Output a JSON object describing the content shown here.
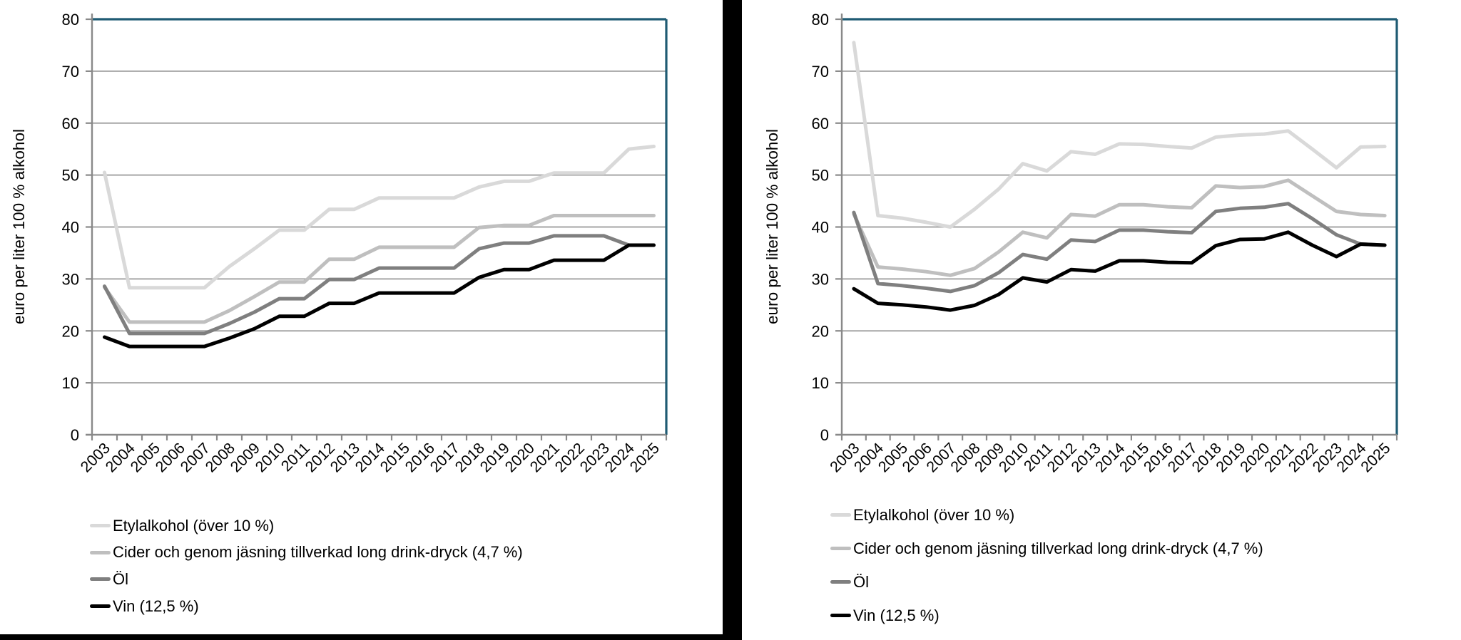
{
  "chart_data": [
    {
      "type": "line",
      "position": "left",
      "title": "",
      "xlabel": "",
      "ylabel": "euro per liter 100 % alkohol",
      "ylim": [
        0,
        80
      ],
      "ytick_interval": 10,
      "yticks": [
        0,
        10,
        20,
        30,
        40,
        50,
        60,
        70,
        80
      ],
      "grid": true,
      "legend_position": "below-left",
      "x": [
        2003,
        2004,
        2005,
        2006,
        2007,
        2008,
        2009,
        2010,
        2011,
        2012,
        2013,
        2014,
        2015,
        2016,
        2017,
        2018,
        2019,
        2020,
        2021,
        2022,
        2023,
        2024,
        2025
      ],
      "series": [
        {
          "name": "Etylalkohol (över 10 %)",
          "color": "#d9d9d9",
          "values": [
            50.5,
            28.3,
            28.3,
            28.3,
            28.3,
            32.4,
            35.8,
            39.4,
            39.4,
            43.4,
            43.4,
            45.6,
            45.6,
            45.6,
            45.6,
            47.7,
            48.8,
            48.8,
            50.4,
            50.4,
            50.4,
            55.0,
            55.5
          ]
        },
        {
          "name": "Cider och genom jäsning tillverkad long drink-dryck (4,7 %)",
          "color": "#bfbfbf",
          "values": [
            28.4,
            21.7,
            21.7,
            21.7,
            21.7,
            23.9,
            26.6,
            29.4,
            29.4,
            33.8,
            33.8,
            36.1,
            36.1,
            36.1,
            36.1,
            39.9,
            40.3,
            40.3,
            42.2,
            42.2,
            42.2,
            42.2,
            42.2
          ]
        },
        {
          "name": "Öl",
          "color": "#7f7f7f",
          "values": [
            28.6,
            19.5,
            19.5,
            19.5,
            19.5,
            21.4,
            23.6,
            26.2,
            26.2,
            29.9,
            29.9,
            32.1,
            32.1,
            32.1,
            32.1,
            35.8,
            36.9,
            36.9,
            38.3,
            38.3,
            38.3,
            36.5,
            36.5
          ]
        },
        {
          "name": "Vin (12,5 %)",
          "color": "#000000",
          "values": [
            18.8,
            17.0,
            17.0,
            17.0,
            17.0,
            18.6,
            20.4,
            22.8,
            22.8,
            25.3,
            25.3,
            27.3,
            27.3,
            27.3,
            27.3,
            30.3,
            31.8,
            31.8,
            33.6,
            33.6,
            33.6,
            36.5,
            36.5
          ]
        }
      ]
    },
    {
      "type": "line",
      "position": "right",
      "title": "",
      "xlabel": "",
      "ylabel": "euro per liter 100 % alkohol",
      "ylim": [
        0,
        80
      ],
      "ytick_interval": 10,
      "yticks": [
        0,
        10,
        20,
        30,
        40,
        50,
        60,
        70,
        80
      ],
      "grid": true,
      "legend_position": "below-left",
      "x": [
        2003,
        2004,
        2005,
        2006,
        2007,
        2008,
        2009,
        2010,
        2011,
        2012,
        2013,
        2014,
        2015,
        2016,
        2017,
        2018,
        2019,
        2020,
        2021,
        2022,
        2023,
        2024,
        2025
      ],
      "series": [
        {
          "name": "Etylalkohol (över 10 %)",
          "color": "#d9d9d9",
          "values": [
            75.5,
            42.2,
            41.7,
            40.9,
            40.0,
            43.4,
            47.3,
            52.2,
            50.8,
            54.5,
            54.0,
            56.0,
            55.9,
            55.5,
            55.2,
            57.3,
            57.7,
            57.9,
            58.5,
            55.0,
            51.4,
            55.4,
            55.5
          ]
        },
        {
          "name": "Cider och genom jäsning tillverkad long drink-dryck (4,7 %)",
          "color": "#bfbfbf",
          "values": [
            42.5,
            32.3,
            31.9,
            31.4,
            30.7,
            32.0,
            35.2,
            39.0,
            37.9,
            42.4,
            42.1,
            44.3,
            44.3,
            43.9,
            43.7,
            47.9,
            47.6,
            47.8,
            49.0,
            46.0,
            43.0,
            42.4,
            42.2
          ]
        },
        {
          "name": "Öl",
          "color": "#7f7f7f",
          "values": [
            42.8,
            29.1,
            28.7,
            28.2,
            27.6,
            28.7,
            31.2,
            34.7,
            33.8,
            37.5,
            37.2,
            39.4,
            39.4,
            39.1,
            38.9,
            43.0,
            43.6,
            43.8,
            44.5,
            41.6,
            38.5,
            36.7,
            36.5
          ]
        },
        {
          "name": "Vin (12,5 %)",
          "color": "#000000",
          "values": [
            28.1,
            25.3,
            25.0,
            24.6,
            24.0,
            24.9,
            27.0,
            30.2,
            29.4,
            31.8,
            31.5,
            33.5,
            33.5,
            33.2,
            33.1,
            36.4,
            37.6,
            37.7,
            39.0,
            36.5,
            34.3,
            36.7,
            36.5
          ]
        }
      ]
    }
  ],
  "colors": {
    "plot_border": "#1f5b73",
    "gridline": "#a6a6a6",
    "axis": "#898989",
    "frame_bar": "#000000"
  }
}
